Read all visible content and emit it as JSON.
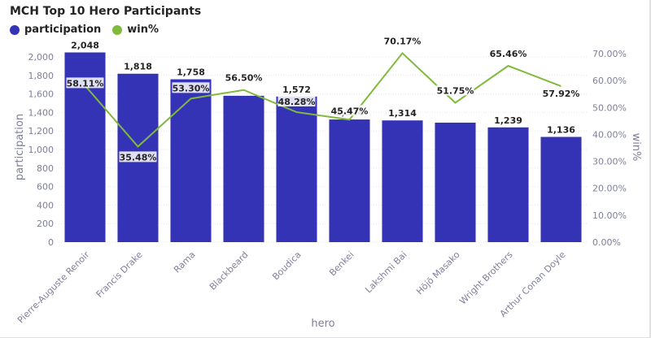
{
  "colors": {
    "bar": "#3432b5",
    "line": "#7fba3c",
    "axis_text": "#7f7f9a",
    "grid": "#e6e6e6"
  },
  "chart_data": {
    "type": "bar",
    "title": "MCH Top 10 Hero Participants",
    "xlabel": "hero",
    "ylabel": "participation",
    "y2label": "win%",
    "legend_placement": "top-left",
    "categories": [
      "Pierre-Auguste Renoir",
      "Francis Drake",
      "Rama",
      "Blackbeard",
      "Boudica",
      "Benkei",
      "Lakshmi Bai",
      "Hōjō Masako",
      "Wright Brothers",
      "Arthur Conan Doyle"
    ],
    "series": [
      {
        "name": "participation",
        "type": "bar",
        "axis": "left",
        "values": [
          2048,
          1818,
          1758,
          1580,
          1572,
          1324,
          1314,
          1290,
          1239,
          1136
        ],
        "labels": [
          "2,048",
          "1,818",
          "1,758",
          "",
          "1,572",
          "1,324",
          "1,314",
          "",
          "1,239",
          "1,136"
        ]
      },
      {
        "name": "win%",
        "type": "line",
        "axis": "right",
        "values": [
          58.11,
          35.48,
          53.3,
          56.5,
          48.28,
          45.47,
          70.17,
          51.75,
          65.46,
          57.92
        ],
        "labels": [
          "58.11%",
          "35.48%",
          "53.30%",
          "56.50%",
          "48.28%",
          "45.47%",
          "70.17%",
          "51.75%",
          "65.46%",
          "57.92%"
        ]
      }
    ],
    "ylim": [
      0,
      2000
    ],
    "yticks": [
      "0",
      "200",
      "400",
      "600",
      "800",
      "1,000",
      "1,200",
      "1,400",
      "1,600",
      "1,800",
      "2,000"
    ],
    "y2lim": [
      0,
      70
    ],
    "y2ticks": [
      "0.00%",
      "10.00%",
      "20.00%",
      "30.00%",
      "40.00%",
      "50.00%",
      "60.00%",
      "70.00%"
    ],
    "grid": true
  }
}
